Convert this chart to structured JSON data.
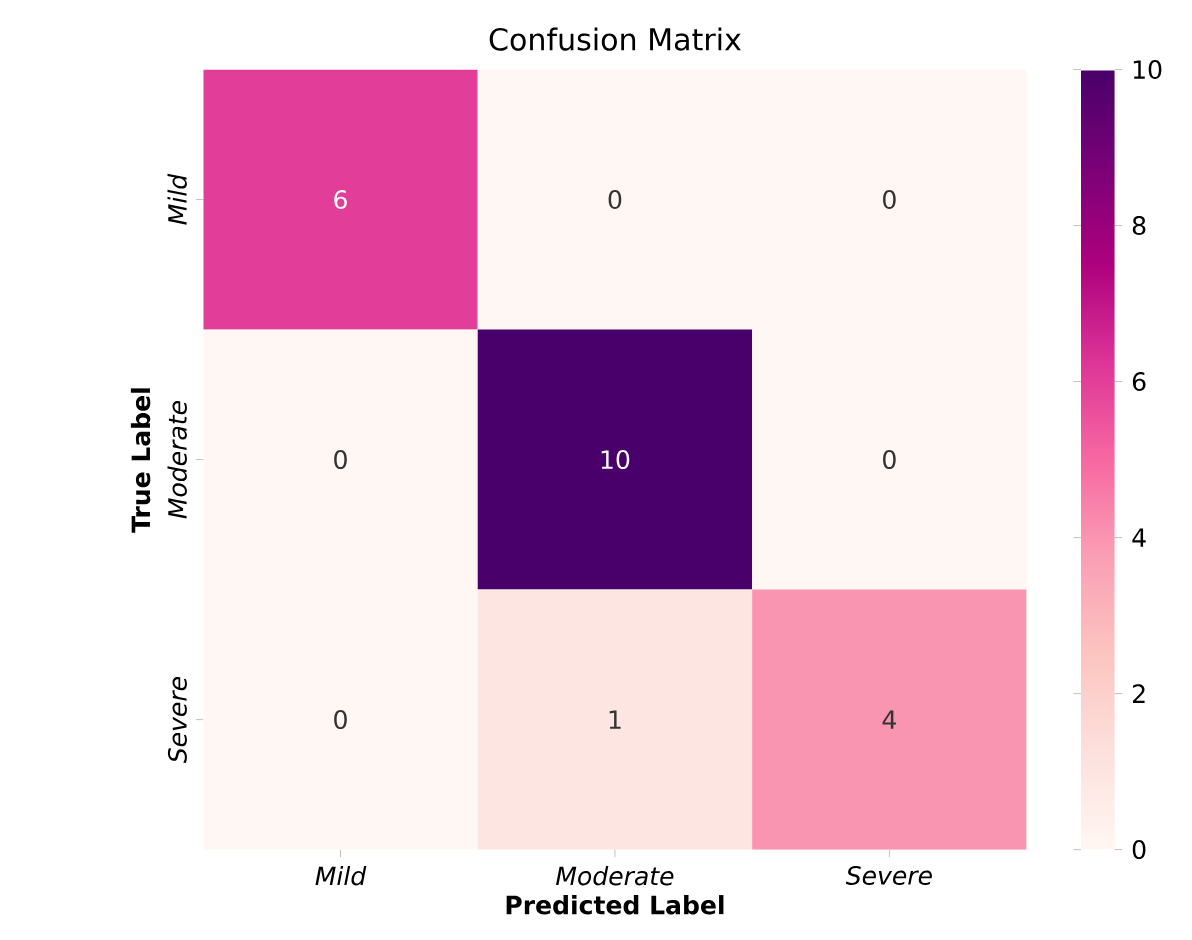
{
  "chart_data": {
    "type": "heatmap",
    "title": "Confusion Matrix",
    "xlabel": "Predicted Label",
    "ylabel": "True Label",
    "categories": [
      "Mild",
      "Moderate",
      "Severe"
    ],
    "y_categories": [
      "Mild",
      "Moderate",
      "Severe"
    ],
    "cells": [
      [
        6,
        0,
        0
      ],
      [
        0,
        10,
        0
      ],
      [
        0,
        1,
        4
      ]
    ],
    "clim": [
      0,
      10
    ],
    "cticks": [
      0,
      2,
      4,
      6,
      8,
      10
    ],
    "data_labels": true
  }
}
